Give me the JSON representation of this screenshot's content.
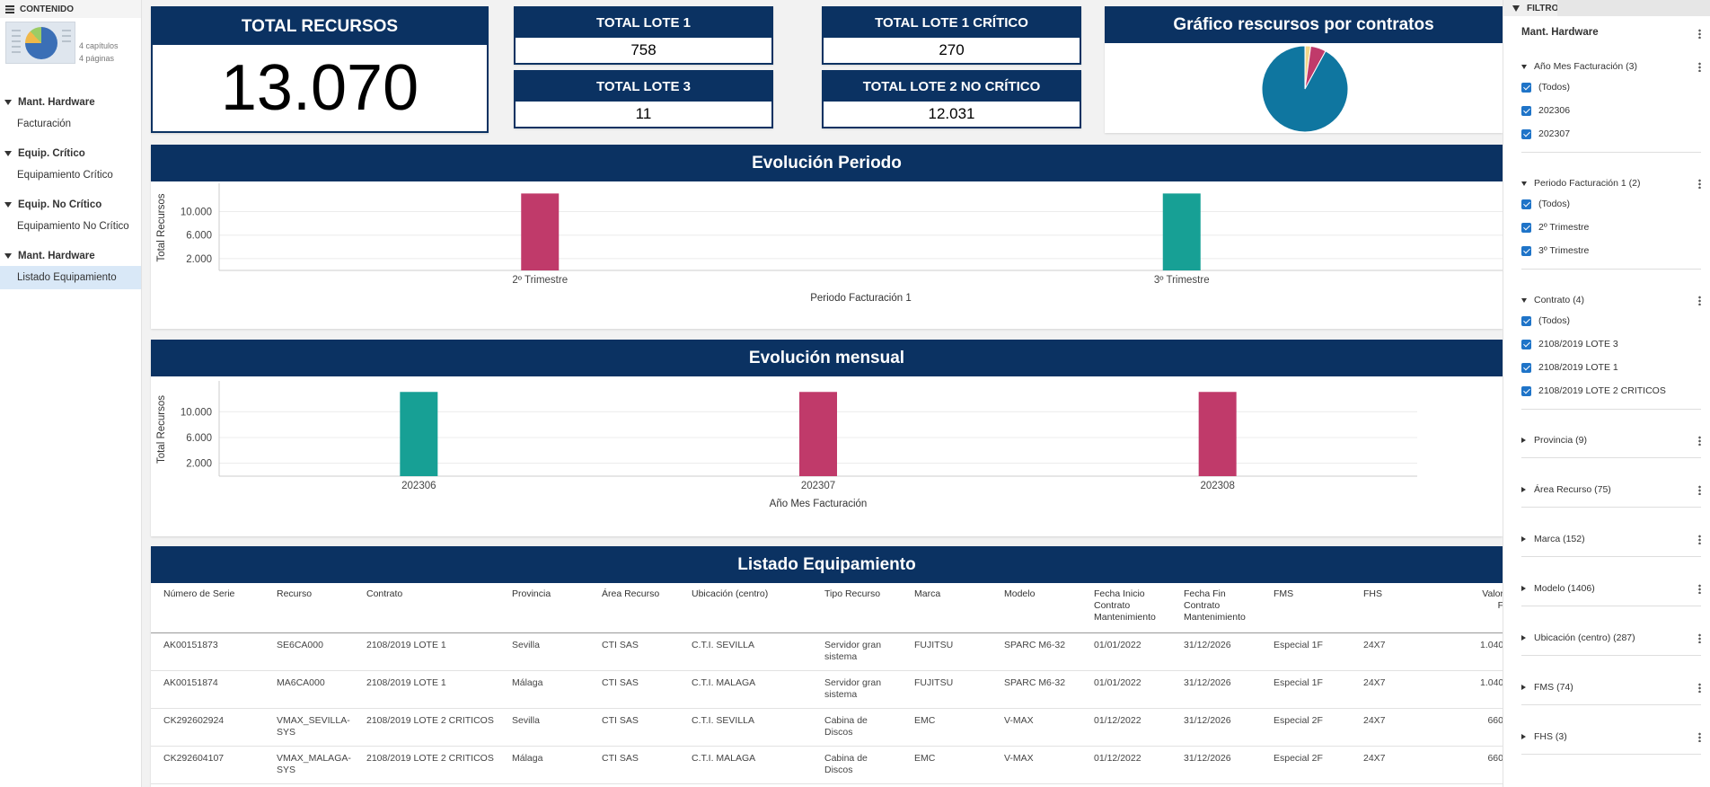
{
  "sidebar": {
    "header": "CONTENIDO",
    "thumb_meta": [
      "4 capítulos",
      "4 páginas"
    ],
    "sections": [
      {
        "title": "Mant. Hardware",
        "item": "Facturación"
      },
      {
        "title": "Equip. Crítico",
        "item": "Equipamiento Crítico"
      },
      {
        "title": "Equip. No Crítico",
        "item": "Equipamiento No Crítico"
      },
      {
        "title": "Mant. Hardware",
        "item": "Listado Equipamiento"
      }
    ],
    "active_item": "Listado Equipamiento"
  },
  "kpis": {
    "total": {
      "title": "TOTAL RECURSOS",
      "value": "13.070"
    },
    "lote1": {
      "title": "TOTAL LOTE 1",
      "value": "758"
    },
    "lote3": {
      "title": "TOTAL LOTE 3",
      "value": "11"
    },
    "lote1_critico": {
      "title": "TOTAL LOTE 1 CRÍTICO",
      "value": "270"
    },
    "lote2_no_critico": {
      "title": "TOTAL LOTE 2 NO CRÍTICO",
      "value": "12.031"
    }
  },
  "pie": {
    "title": "Gráfico rescursos por contratos"
  },
  "colors": {
    "navy": "#0b3262",
    "magenta": "#c03a6a",
    "teal": "#17a095",
    "pie_main": "#0f76a0",
    "pie_red": "#c03a6a",
    "pie_yellow": "#f2d68a",
    "checkbox": "#1f74c8"
  },
  "chart_data": [
    {
      "type": "pie",
      "title": "Gráfico rescursos por contratos",
      "slices": [
        {
          "value": 12031,
          "color": "#0f76a0"
        },
        {
          "value": 758,
          "color": "#c03a6a"
        },
        {
          "value": 270,
          "color": "#f2d68a"
        },
        {
          "value": 11,
          "color": "#8a7fb8"
        }
      ]
    },
    {
      "type": "bar",
      "title": "Evolución Periodo",
      "categories": [
        "2º Trimestre",
        "3º Trimestre"
      ],
      "values": [
        13070,
        13070
      ],
      "colors": [
        "#c03a6a",
        "#17a095"
      ],
      "xlabel": "Periodo Facturación 1",
      "ylabel": "Total Recursos",
      "yticks": [
        "2.000",
        "6.000",
        "10.000"
      ],
      "ytick_values": [
        2000,
        6000,
        10000
      ],
      "ylim": [
        0,
        14500
      ]
    },
    {
      "type": "bar",
      "title": "Evolución mensual",
      "categories": [
        "202306",
        "202307",
        "202308"
      ],
      "values": [
        13070,
        13070,
        13070
      ],
      "colors": [
        "#17a095",
        "#c03a6a",
        "#c03a6a"
      ],
      "xlabel": "Año Mes Facturación",
      "ylabel": "Total Recursos",
      "yticks": [
        "2.000",
        "6.000",
        "10.000"
      ],
      "ytick_values": [
        2000,
        6000,
        10000
      ],
      "ylim": [
        0,
        14500
      ]
    }
  ],
  "table": {
    "title": "Listado Equipamiento",
    "columns": [
      "Número de Serie",
      "Recurso",
      "Contrato",
      "Provincia",
      "Área Recurso",
      "Ubicación (centro)",
      "Tipo Recurso",
      "Marca",
      "Modelo",
      "Fecha Inicio Contrato Mantenimiento",
      "Fecha Fin Contrato Mantenimiento",
      "FMS",
      "FHS",
      "Valor F"
    ],
    "rows": [
      [
        "AK00151873",
        "SE6CA000",
        "2108/2019 LOTE 1",
        "Sevilla",
        "CTI SAS",
        "C.T.I. SEVILLA",
        "Servidor gran sistema",
        "FUJITSU",
        "SPARC M6-32",
        "01/01/2022",
        "31/12/2026",
        "Especial 1F",
        "24X7",
        "1.040"
      ],
      [
        "AK00151874",
        "MA6CA000",
        "2108/2019 LOTE 1",
        "Málaga",
        "CTI SAS",
        "C.T.I. MALAGA",
        "Servidor gran sistema",
        "FUJITSU",
        "SPARC M6-32",
        "01/01/2022",
        "31/12/2026",
        "Especial 1F",
        "24X7",
        "1.040"
      ],
      [
        "CK292602924",
        "VMAX_SEVILLA-SYS",
        "2108/2019 LOTE 2 CRITICOS",
        "Sevilla",
        "CTI SAS",
        "C.T.I. SEVILLA",
        "Cabina de Discos",
        "EMC",
        "V-MAX",
        "01/12/2022",
        "31/12/2026",
        "Especial 2F",
        "24X7",
        "660"
      ],
      [
        "CK292604107",
        "VMAX_MALAGA-SYS",
        "2108/2019 LOTE 2 CRITICOS",
        "Málaga",
        "CTI SAS",
        "C.T.I. MALAGA",
        "Cabina de Discos",
        "EMC",
        "V-MAX",
        "01/12/2022",
        "31/12/2026",
        "Especial 2F",
        "24X7",
        "660"
      ]
    ]
  },
  "filter": {
    "tab": "FILTRO",
    "title": "Mant. Hardware",
    "groups": [
      {
        "label": "Año Mes Facturación (3)",
        "expanded": true,
        "options": [
          "(Todos)",
          "202306",
          "202307"
        ]
      },
      {
        "label": "Periodo Facturación 1 (2)",
        "expanded": true,
        "options": [
          "(Todos)",
          "2º Trimestre",
          "3º Trimestre"
        ]
      },
      {
        "label": "Contrato (4)",
        "expanded": true,
        "options": [
          "(Todos)",
          "2108/2019 LOTE 3",
          "2108/2019 LOTE 1",
          "2108/2019 LOTE 2 CRITICOS"
        ]
      },
      {
        "label": "Provincia (9)",
        "expanded": false,
        "options": []
      },
      {
        "label": "Área Recurso (75)",
        "expanded": false,
        "options": []
      },
      {
        "label": "Marca (152)",
        "expanded": false,
        "options": []
      },
      {
        "label": "Modelo (1406)",
        "expanded": false,
        "options": []
      },
      {
        "label": "Ubicación (centro) (287)",
        "expanded": false,
        "options": []
      },
      {
        "label": "FMS (74)",
        "expanded": false,
        "options": []
      },
      {
        "label": "FHS (3)",
        "expanded": false,
        "options": []
      }
    ]
  }
}
